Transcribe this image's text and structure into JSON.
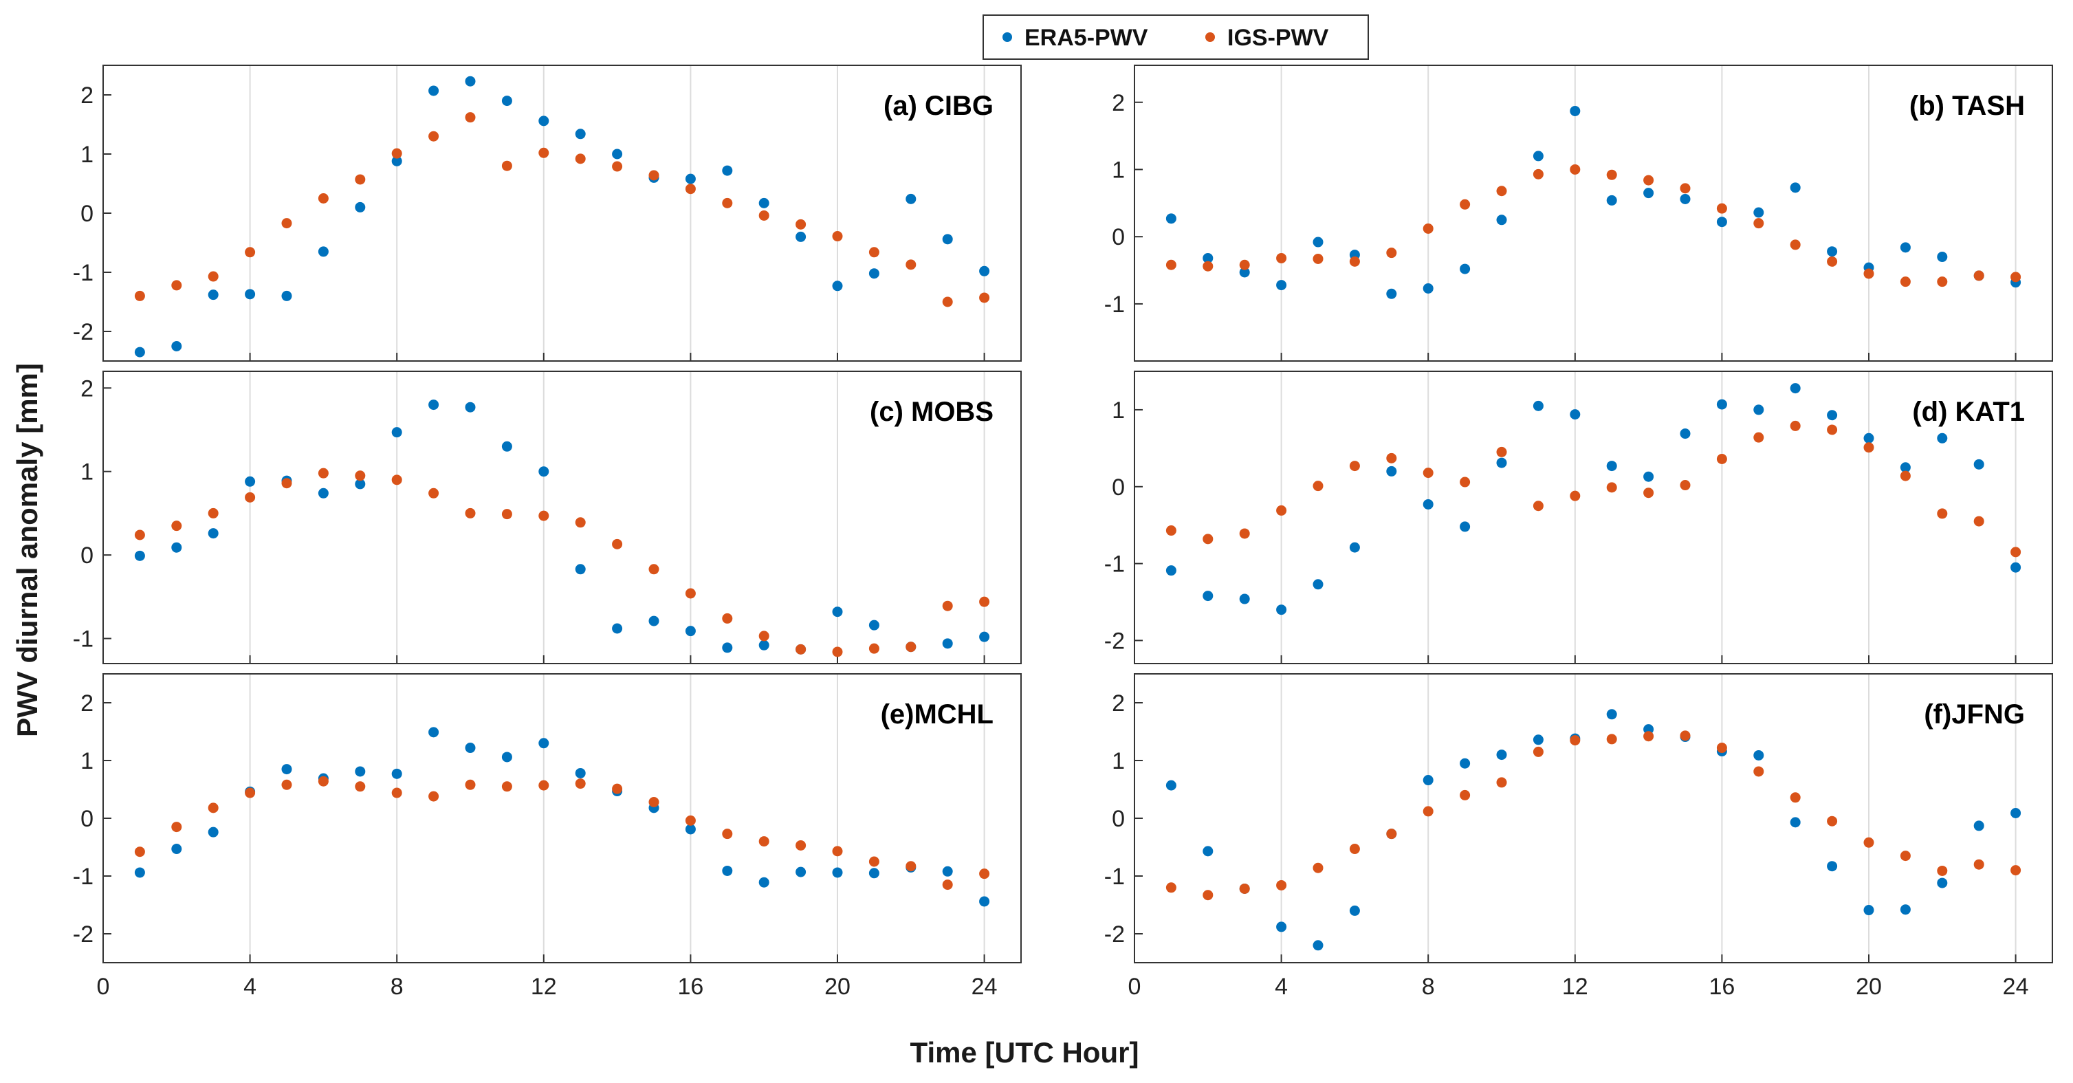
{
  "colors": {
    "era5": "#0072BD",
    "igs": "#D95319",
    "grid": "#dcdcdc",
    "frame": "#333333"
  },
  "legend": {
    "era5_label": "ERA5-PWV",
    "igs_label": "IGS-PWV"
  },
  "axes": {
    "xlabel": "Time [UTC Hour]",
    "ylabel": "PWV diurnal anomaly [mm]"
  },
  "chart_data": [
    {
      "type": "scatter",
      "title": "(a) CIBG",
      "xlim": [
        0,
        25
      ],
      "ylim": [
        -2.5,
        2.5
      ],
      "xticks": [
        0,
        4,
        8,
        12,
        16,
        20,
        24
      ],
      "yticks": [
        -2,
        -1,
        0,
        1,
        2
      ],
      "x": [
        1,
        2,
        3,
        4,
        5,
        6,
        7,
        8,
        9,
        10,
        11,
        12,
        13,
        14,
        15,
        16,
        17,
        18,
        19,
        20,
        21,
        22,
        23,
        24
      ],
      "series": [
        {
          "name": "ERA5-PWV",
          "values": [
            -2.35,
            -2.25,
            -1.38,
            -1.37,
            -1.4,
            -0.65,
            0.1,
            0.88,
            2.07,
            2.23,
            1.9,
            1.56,
            1.34,
            1.0,
            0.6,
            0.58,
            0.72,
            0.17,
            -0.4,
            -1.23,
            -1.02,
            0.24,
            -0.44,
            -0.98
          ]
        },
        {
          "name": "IGS-PWV",
          "values": [
            -1.4,
            -1.22,
            -1.07,
            -0.66,
            -0.17,
            0.25,
            0.57,
            1.01,
            1.3,
            1.62,
            0.8,
            1.02,
            0.92,
            0.79,
            0.64,
            0.41,
            0.17,
            -0.04,
            -0.19,
            -0.39,
            -0.66,
            -0.87,
            -1.5,
            -1.43
          ]
        }
      ]
    },
    {
      "type": "scatter",
      "title": "(b) TASH",
      "xlim": [
        0,
        25
      ],
      "ylim": [
        -1.85,
        2.55
      ],
      "xticks": [
        0,
        4,
        8,
        12,
        16,
        20,
        24
      ],
      "yticks": [
        -1,
        0,
        1,
        2
      ],
      "x": [
        1,
        2,
        3,
        4,
        5,
        6,
        7,
        8,
        9,
        10,
        11,
        12,
        13,
        14,
        15,
        16,
        17,
        18,
        19,
        20,
        21,
        22,
        23,
        24
      ],
      "series": [
        {
          "name": "ERA5-PWV",
          "values": [
            0.27,
            -0.32,
            -0.53,
            -0.72,
            -0.08,
            -0.27,
            -0.85,
            -0.77,
            -0.48,
            0.25,
            1.2,
            1.87,
            0.54,
            0.65,
            0.56,
            0.22,
            0.36,
            0.73,
            -0.22,
            -0.46,
            -0.16,
            -0.3,
            -0.58,
            -0.68
          ]
        },
        {
          "name": "IGS-PWV",
          "values": [
            -0.42,
            -0.44,
            -0.42,
            -0.32,
            -0.33,
            -0.37,
            -0.24,
            0.12,
            0.48,
            0.68,
            0.93,
            1.0,
            0.92,
            0.84,
            0.72,
            0.42,
            0.2,
            -0.12,
            -0.37,
            -0.55,
            -0.67,
            -0.67,
            -0.58,
            -0.6
          ]
        }
      ]
    },
    {
      "type": "scatter",
      "title": "(c) MOBS",
      "xlim": [
        0,
        25
      ],
      "ylim": [
        -1.3,
        2.2
      ],
      "xticks": [
        0,
        4,
        8,
        12,
        16,
        20,
        24
      ],
      "yticks": [
        -1,
        0,
        1,
        2
      ],
      "x": [
        1,
        2,
        3,
        4,
        5,
        6,
        7,
        8,
        9,
        10,
        11,
        12,
        13,
        14,
        15,
        16,
        17,
        18,
        19,
        20,
        21,
        22,
        23,
        24
      ],
      "series": [
        {
          "name": "ERA5-PWV",
          "values": [
            -0.01,
            0.09,
            0.26,
            0.88,
            0.89,
            0.74,
            0.85,
            1.47,
            1.8,
            1.77,
            1.3,
            1.0,
            -0.17,
            -0.88,
            -0.79,
            -0.91,
            -1.11,
            -1.08,
            -1.13,
            -0.68,
            -0.84,
            -1.1,
            -1.06,
            -0.98
          ]
        },
        {
          "name": "IGS-PWV",
          "values": [
            0.24,
            0.35,
            0.5,
            0.69,
            0.86,
            0.98,
            0.95,
            0.9,
            0.74,
            0.5,
            0.49,
            0.47,
            0.39,
            0.13,
            -0.17,
            -0.46,
            -0.76,
            -0.97,
            -1.13,
            -1.16,
            -1.12,
            -1.1,
            -0.61,
            -0.56
          ]
        }
      ]
    },
    {
      "type": "scatter",
      "title": "(d) KAT1",
      "xlim": [
        0,
        25
      ],
      "ylim": [
        -2.3,
        1.5
      ],
      "xticks": [
        0,
        4,
        8,
        12,
        16,
        20,
        24
      ],
      "yticks": [
        -2,
        -1,
        0,
        1
      ],
      "x": [
        1,
        2,
        3,
        4,
        5,
        6,
        7,
        8,
        9,
        10,
        11,
        12,
        13,
        14,
        15,
        16,
        17,
        18,
        19,
        20,
        21,
        22,
        23,
        24
      ],
      "series": [
        {
          "name": "ERA5-PWV",
          "values": [
            -1.09,
            -1.42,
            -1.46,
            -1.6,
            -1.27,
            -0.79,
            0.2,
            -0.23,
            -0.52,
            0.31,
            1.05,
            0.94,
            0.27,
            0.13,
            0.69,
            1.07,
            1.0,
            1.28,
            0.93,
            0.63,
            0.25,
            0.63,
            0.29,
            -1.05
          ]
        },
        {
          "name": "IGS-PWV",
          "values": [
            -0.57,
            -0.68,
            -0.61,
            -0.31,
            0.01,
            0.27,
            0.37,
            0.18,
            0.06,
            0.45,
            -0.25,
            -0.12,
            -0.01,
            -0.08,
            0.02,
            0.36,
            0.64,
            0.79,
            0.74,
            0.51,
            0.14,
            -0.35,
            -0.45,
            -0.85
          ]
        }
      ]
    },
    {
      "type": "scatter",
      "title": "(e)MCHL",
      "xlim": [
        0,
        25
      ],
      "ylim": [
        -2.5,
        2.5
      ],
      "xticks": [
        0,
        4,
        8,
        12,
        16,
        20,
        24
      ],
      "yticks": [
        -2,
        -1,
        0,
        1,
        2
      ],
      "x": [
        1,
        2,
        3,
        4,
        5,
        6,
        7,
        8,
        9,
        10,
        11,
        12,
        13,
        14,
        15,
        16,
        17,
        18,
        19,
        20,
        21,
        22,
        23,
        24
      ],
      "series": [
        {
          "name": "ERA5-PWV",
          "values": [
            -0.94,
            -0.53,
            -0.24,
            0.46,
            0.85,
            0.69,
            0.81,
            0.77,
            1.49,
            1.22,
            1.06,
            1.3,
            0.78,
            0.47,
            0.18,
            -0.19,
            -0.91,
            -1.11,
            -0.93,
            -0.94,
            -0.95,
            -0.85,
            -0.92,
            -1.44
          ]
        },
        {
          "name": "IGS-PWV",
          "values": [
            -0.58,
            -0.15,
            0.18,
            0.44,
            0.58,
            0.64,
            0.55,
            0.44,
            0.38,
            0.58,
            0.55,
            0.57,
            0.6,
            0.51,
            0.28,
            -0.04,
            -0.27,
            -0.4,
            -0.47,
            -0.57,
            -0.75,
            -0.83,
            -1.15,
            -0.96
          ]
        }
      ]
    },
    {
      "type": "scatter",
      "title": "(f)JFNG",
      "xlim": [
        0,
        25
      ],
      "ylim": [
        -2.5,
        2.5
      ],
      "xticks": [
        0,
        4,
        8,
        12,
        16,
        20,
        24
      ],
      "yticks": [
        -2,
        -1,
        0,
        1,
        2
      ],
      "x": [
        1,
        2,
        3,
        4,
        5,
        6,
        7,
        8,
        9,
        10,
        11,
        12,
        13,
        14,
        15,
        16,
        17,
        18,
        19,
        20,
        21,
        22,
        23,
        24
      ],
      "series": [
        {
          "name": "ERA5-PWV",
          "values": [
            0.57,
            -0.57,
            -1.22,
            -1.88,
            -2.2,
            -1.6,
            -0.27,
            0.66,
            0.95,
            1.1,
            1.36,
            1.38,
            1.8,
            1.54,
            1.41,
            1.16,
            1.09,
            -0.07,
            -0.83,
            -1.59,
            -1.58,
            -1.12,
            -0.13,
            0.09
          ]
        },
        {
          "name": "IGS-PWV",
          "values": [
            -1.2,
            -1.33,
            -1.22,
            -1.16,
            -0.86,
            -0.53,
            -0.27,
            0.12,
            0.4,
            0.62,
            1.15,
            1.35,
            1.37,
            1.42,
            1.43,
            1.22,
            0.81,
            0.36,
            -0.05,
            -0.42,
            -0.65,
            -0.91,
            -0.8,
            -0.9
          ]
        }
      ]
    }
  ]
}
